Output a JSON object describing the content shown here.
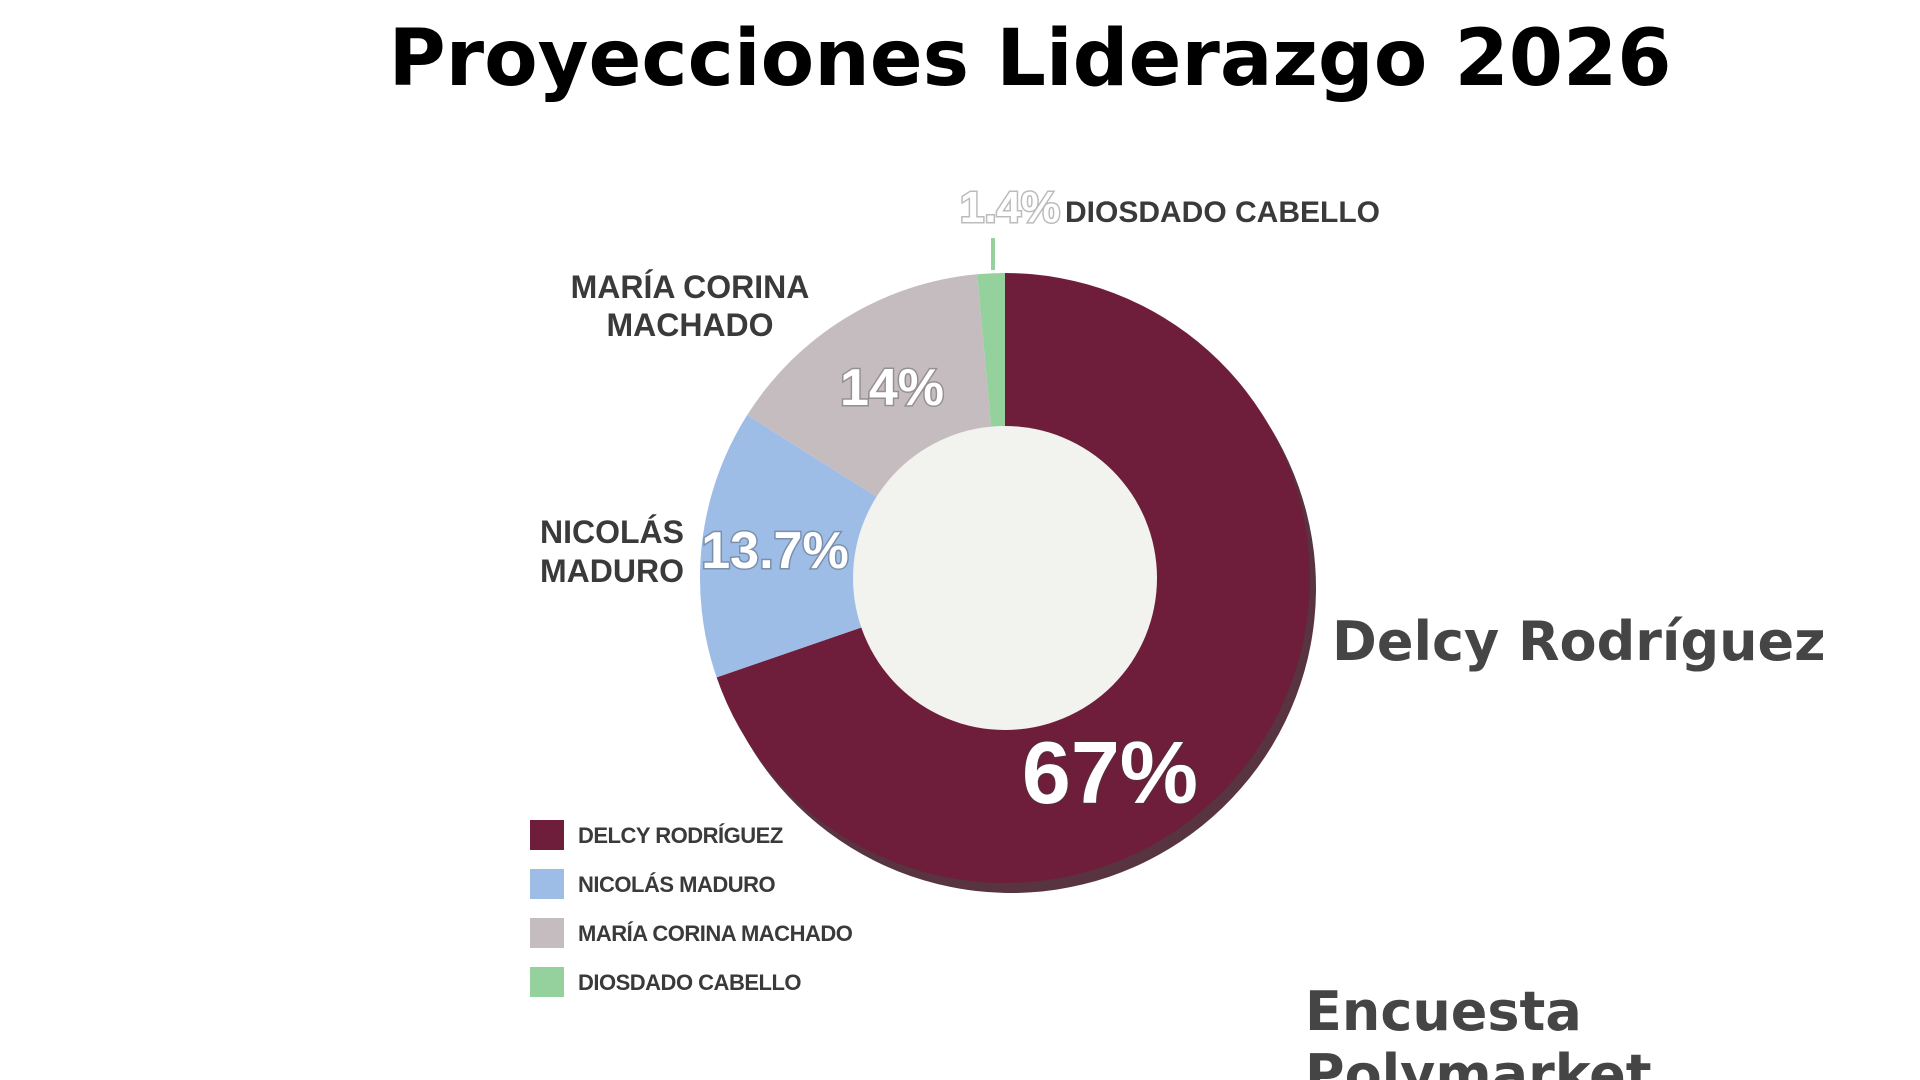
{
  "title": "Proyecciones Liderazgo 2026",
  "highlight_label": "Delcy Rodríguez",
  "source": "Encuesta Polymarket",
  "colors": {
    "delcy": "#6e1e3a",
    "nicolas": "#9dbce6",
    "maria": "#c5bcc0",
    "diosdado": "#94d19d",
    "hole": "#f2f2ee"
  },
  "chart_data": {
    "type": "pie",
    "donut": true,
    "series": [
      {
        "name": "DELCY RODRÍGUEZ",
        "value": 67,
        "label": "67%",
        "color": "#6e1e3a"
      },
      {
        "name": "NICOLÁS MADURO",
        "value": 13.7,
        "label": "13.7%",
        "outer_label": [
          "NICOLÁS",
          "MADURO"
        ],
        "color": "#9dbce6"
      },
      {
        "name": "MARÍA CORINA MACHADO",
        "value": 14,
        "label": "14%",
        "outer_label": [
          "MARÍA CORINA",
          "MACHADO"
        ],
        "color": "#c5bcc0"
      },
      {
        "name": "DIOSDADO CABELLO",
        "value": 1.4,
        "label": "1.4%",
        "outer_label": [
          "DIOSDADO CABELLO"
        ],
        "color": "#94d19d"
      }
    ],
    "legend": {
      "position": "bottom-left",
      "entries": [
        "DELCY RODRÍGUEZ",
        "NICOLÁS MADURO",
        "MARÍA CORINA MACHADO",
        "DIOSDADO CABELLO"
      ]
    }
  }
}
